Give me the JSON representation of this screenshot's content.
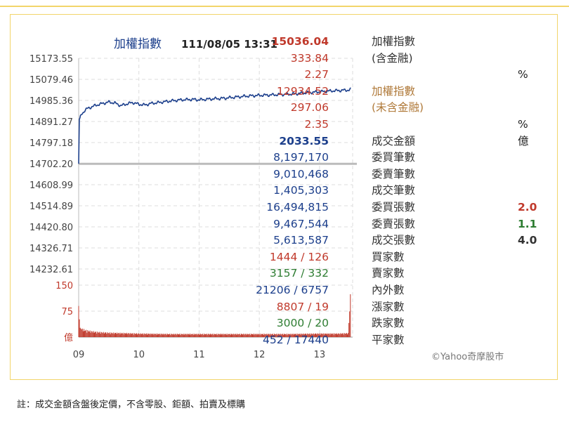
{
  "chart_data": {
    "type": "line",
    "title": "加權指數",
    "timestamp": "111/08/05 13:31",
    "y_ticks": [
      "15173.55",
      "15079.46",
      "14985.36",
      "14891.27",
      "14797.18",
      "14702.20",
      "14608.99",
      "14514.89",
      "14420.80",
      "14326.71",
      "14232.61"
    ],
    "ylim": [
      14232.61,
      15173.55
    ],
    "reference_value": 14702.2,
    "x_ticks": [
      "09",
      "10",
      "11",
      "12",
      "13"
    ],
    "volume_ticks": [
      "150",
      "75",
      "億"
    ],
    "volume_max": 150,
    "series_index": [
      [
        9.0,
        14702
      ],
      [
        9.01,
        14900
      ],
      [
        9.05,
        14925
      ],
      [
        9.1,
        14940
      ],
      [
        9.15,
        14950
      ],
      [
        9.2,
        14955
      ],
      [
        9.3,
        14965
      ],
      [
        9.4,
        14972
      ],
      [
        9.5,
        14978
      ],
      [
        9.6,
        14974
      ],
      [
        9.7,
        14962
      ],
      [
        9.8,
        14970
      ],
      [
        9.9,
        14976
      ],
      [
        10.0,
        14968
      ],
      [
        10.1,
        14965
      ],
      [
        10.2,
        14972
      ],
      [
        10.3,
        14975
      ],
      [
        10.5,
        14982
      ],
      [
        10.7,
        14988
      ],
      [
        10.9,
        14990
      ],
      [
        11.0,
        14988
      ],
      [
        11.2,
        14992
      ],
      [
        11.4,
        14995
      ],
      [
        11.6,
        15000
      ],
      [
        11.8,
        15005
      ],
      [
        12.0,
        15008
      ],
      [
        12.2,
        15010
      ],
      [
        12.4,
        15012
      ],
      [
        12.6,
        15015
      ],
      [
        12.8,
        15020
      ],
      [
        13.0,
        15024
      ],
      [
        13.2,
        15028
      ],
      [
        13.35,
        15030
      ],
      [
        13.5,
        15032
      ],
      [
        13.52,
        15036.04
      ]
    ],
    "series_volume": [
      [
        9.0,
        90
      ],
      [
        9.02,
        28
      ],
      [
        9.05,
        22
      ],
      [
        9.1,
        18
      ],
      [
        9.2,
        15
      ],
      [
        9.3,
        13
      ],
      [
        9.5,
        11
      ],
      [
        9.8,
        10
      ],
      [
        10.0,
        9
      ],
      [
        10.5,
        8
      ],
      [
        11.0,
        8
      ],
      [
        11.5,
        8
      ],
      [
        12.0,
        8
      ],
      [
        12.5,
        8
      ],
      [
        13.0,
        9
      ],
      [
        13.3,
        9
      ],
      [
        13.48,
        10
      ],
      [
        13.52,
        150
      ]
    ]
  },
  "stats": [
    {
      "label": "加權指數",
      "value": "15036.04",
      "ext": "",
      "label_color": "dark",
      "value_color": "red",
      "value_bold": true
    },
    {
      "label": "(含金融)",
      "value": "333.84",
      "ext": "",
      "label_color": "dark",
      "value_color": "red",
      "value_bold": false
    },
    {
      "label": "",
      "value": "2.27",
      "ext": "%",
      "label_color": "dark",
      "value_color": "red",
      "value_bold": false
    },
    {
      "label": "加權指數",
      "value": "12934.52",
      "ext": "",
      "label_color": "brown",
      "value_color": "red",
      "value_bold": false
    },
    {
      "label": "(未含金融)",
      "value": "297.06",
      "ext": "",
      "label_color": "brown",
      "value_color": "red",
      "value_bold": false
    },
    {
      "label": "",
      "value": "2.35",
      "ext": "%",
      "label_color": "dark",
      "value_color": "red",
      "value_bold": false
    },
    {
      "label": "成交金額",
      "value": "2033.55",
      "ext": "億",
      "label_color": "dark",
      "value_color": "navy",
      "value_bold": true
    },
    {
      "label": "委買筆數",
      "value": "8,197,170",
      "ext": "",
      "label_color": "dark",
      "value_color": "navy",
      "value_bold": false
    },
    {
      "label": "委賣筆數",
      "value": "9,010,468",
      "ext": "",
      "label_color": "dark",
      "value_color": "navy",
      "value_bold": false
    },
    {
      "label": "成交筆數",
      "value": "1,405,303",
      "ext": "",
      "label_color": "dark",
      "value_color": "navy",
      "value_bold": false
    },
    {
      "label": "委買張數",
      "value": "16,494,815",
      "ext": "2.0",
      "label_color": "dark",
      "value_color": "navy",
      "value_bold": false,
      "ext_color": "red"
    },
    {
      "label": "委賣張數",
      "value": "9,467,544",
      "ext": "1.1",
      "label_color": "dark",
      "value_color": "navy",
      "value_bold": false,
      "ext_color": "green"
    },
    {
      "label": "成交張數",
      "value": "5,613,587",
      "ext": "4.0",
      "label_color": "dark",
      "value_color": "navy",
      "value_bold": false,
      "ext_color": "dark"
    },
    {
      "label": "買家數",
      "value": "1444 / 126",
      "ext": "",
      "label_color": "dark",
      "value_color": "red",
      "value_bold": false
    },
    {
      "label": "賣家數",
      "value": "3157 / 332",
      "ext": "",
      "label_color": "dark",
      "value_color": "green",
      "value_bold": false
    },
    {
      "label": "內外數",
      "value": "21206 / 6757",
      "ext": "",
      "label_color": "dark",
      "value_color": "navy",
      "value_bold": false
    },
    {
      "label": "漲家數",
      "value": "8807 / 19",
      "ext": "",
      "label_color": "dark",
      "value_color": "red",
      "value_bold": false
    },
    {
      "label": "跌家數",
      "value": "3000 / 20",
      "ext": "",
      "label_color": "dark",
      "value_color": "green",
      "value_bold": false
    },
    {
      "label": "平家數",
      "value": "452 / 17440",
      "ext": "",
      "label_color": "dark",
      "value_color": "navy",
      "value_bold": false
    }
  ],
  "credit": "©Yahoo奇摩股市",
  "footnote": "註：成交金額含盤後定價，不含零股、鉅額、拍賣及標購",
  "colors": {
    "index_line": "#1c3f8c",
    "reference_line": "#bbbbbb",
    "volume_bar": "#c0392b",
    "grid": "#dddddd",
    "border": "#f2d56a"
  }
}
